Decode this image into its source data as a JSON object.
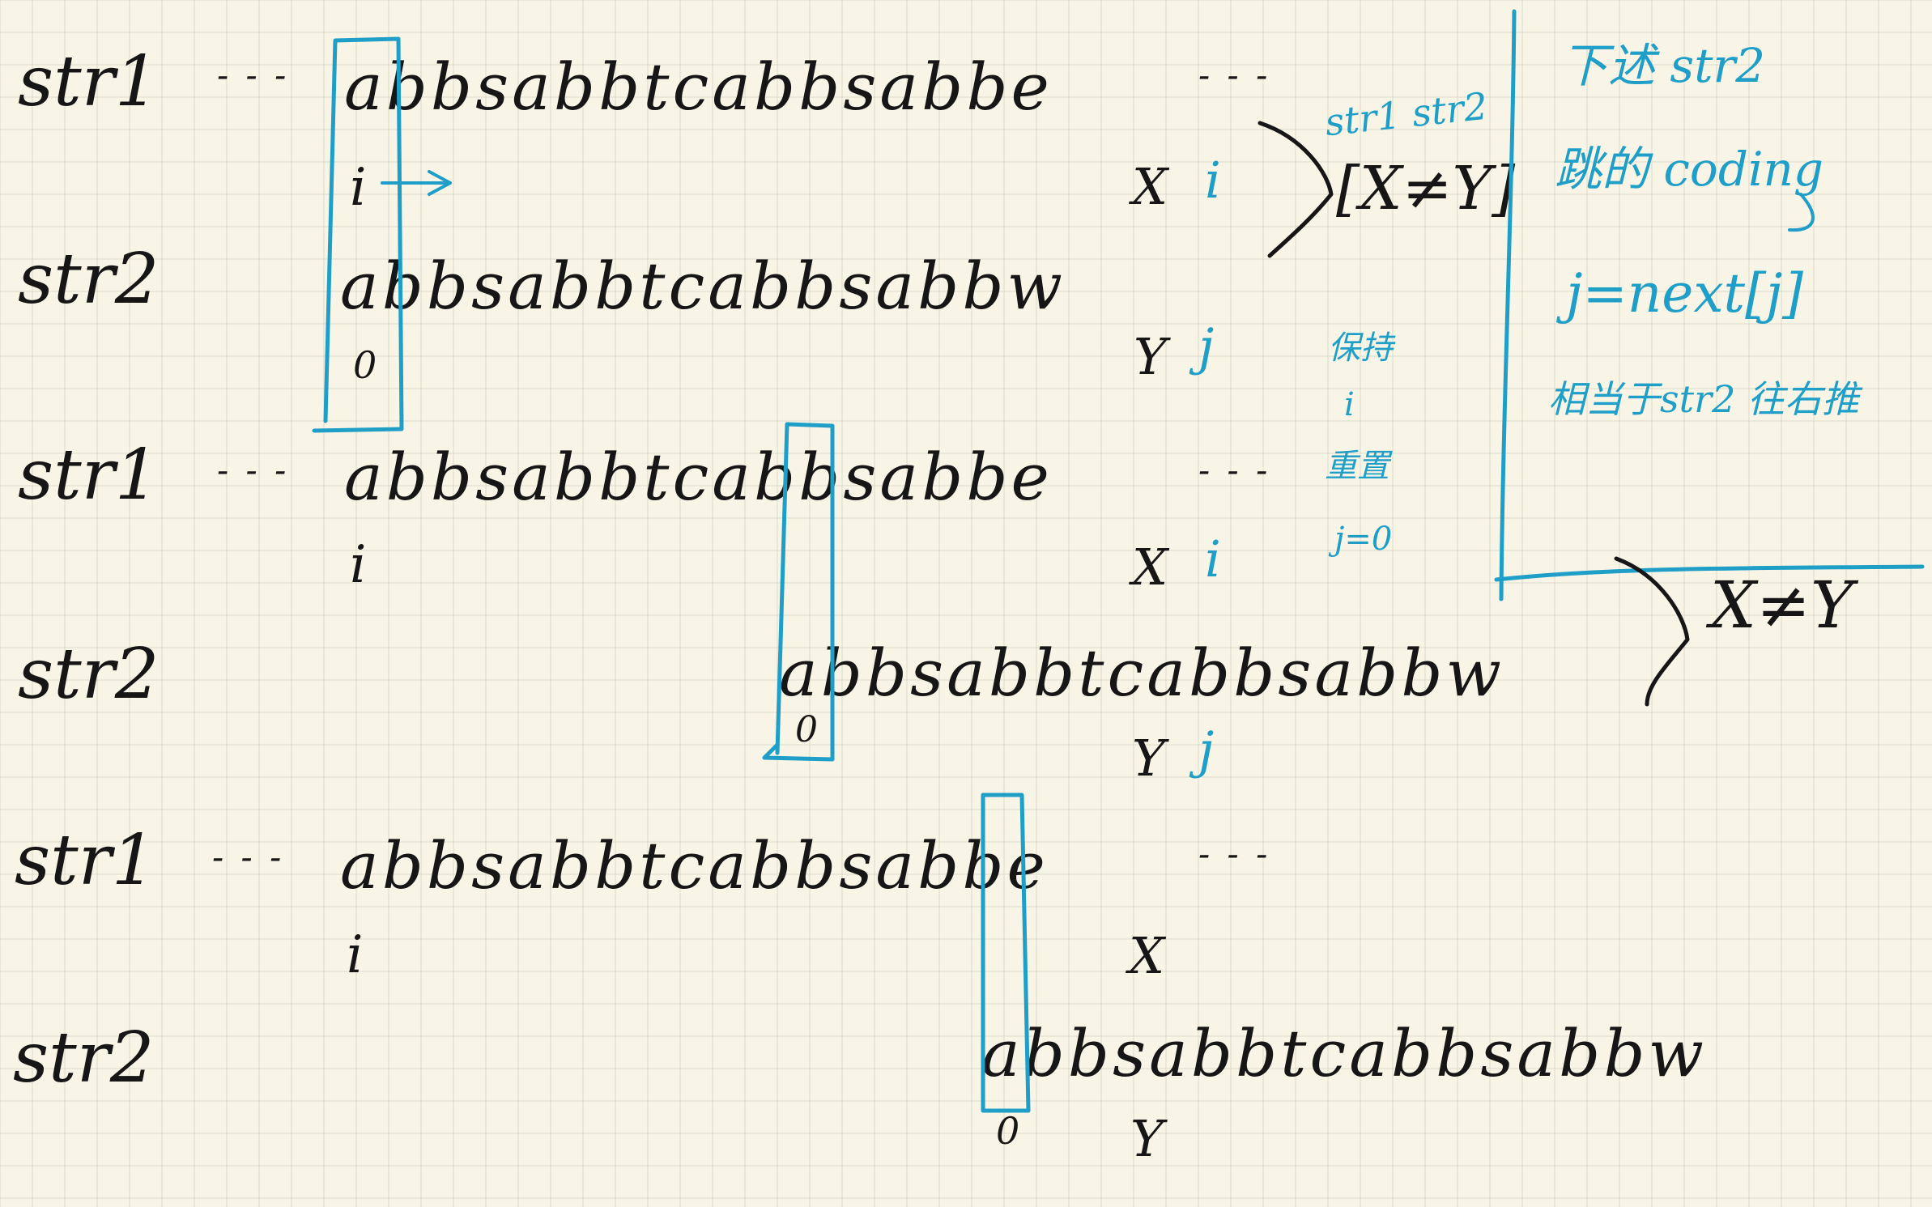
{
  "labels": {
    "str1": "str1",
    "str2": "str2"
  },
  "rows": {
    "str1_a": "abbsabbtcabbsabbe",
    "str2_a": "abbsabbtcabbsabbw",
    "str1_b": "abbsabbtcabbsabbe",
    "str2_b": "abbsabbtcabbsabbw",
    "str1_c": "abbsabbtcabbsabbe",
    "str2_c": "abbsabbtcabbsabbw"
  },
  "symbols": {
    "ellipsis_left": "- - -",
    "ellipsis_right": "- - -",
    "i": "i",
    "j": "j",
    "zero": "0",
    "X": "X",
    "Y": "Y"
  },
  "notes": {
    "neq_top": "str1  str2",
    "conflict_top": "[X≠Y]",
    "keep_i": "保持",
    "keep_i2": "i",
    "reset": "重置",
    "j_zero": "j=0",
    "conflict_mid": "X≠Y",
    "side_title": "下述 str2",
    "side_line2": "跳的 coding",
    "side_line3": "j=next[j]",
    "side_line4": "相当于str2 往右推"
  },
  "colors": {
    "ink": "#161616",
    "accent": "#1f9ec8",
    "paper": "#f8f5e6",
    "grid": "#dcdacb"
  }
}
